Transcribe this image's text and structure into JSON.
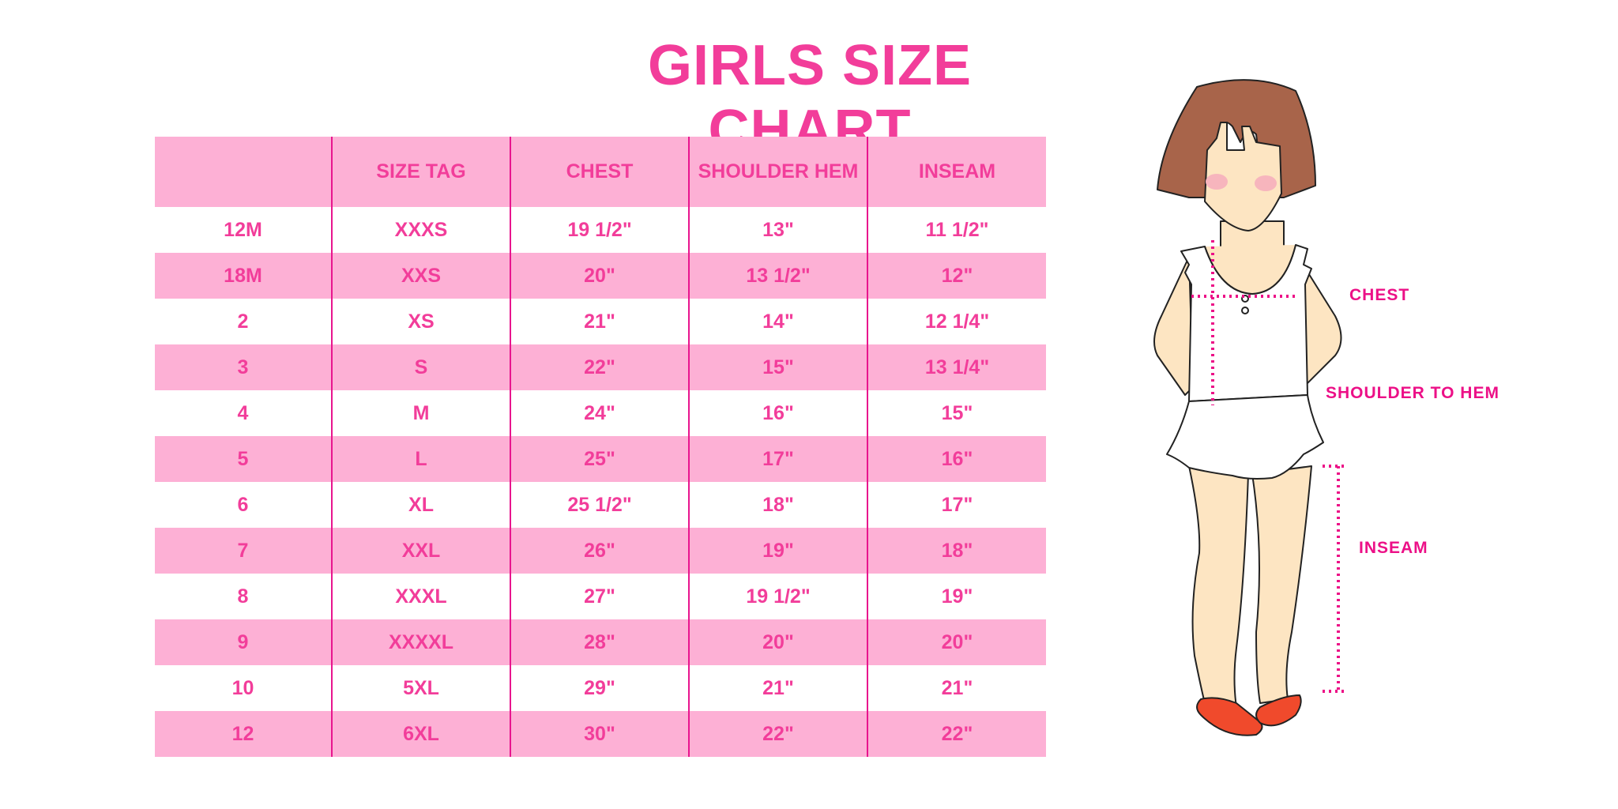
{
  "title": "GIRLS SIZE CHART",
  "table": {
    "headers": [
      "",
      "SIZE TAG",
      "CHEST",
      "SHOULDER HEM",
      "INSEAM"
    ],
    "rows": [
      [
        "12M",
        "XXXS",
        "19 1/2\"",
        "13\"",
        "11 1/2\""
      ],
      [
        "18M",
        "XXS",
        "20\"",
        "13 1/2\"",
        "12\""
      ],
      [
        "2",
        "XS",
        "21\"",
        "14\"",
        "12 1/4\""
      ],
      [
        "3",
        "S",
        "22\"",
        "15\"",
        "13 1/4\""
      ],
      [
        "4",
        "M",
        "24\"",
        "16\"",
        "15\""
      ],
      [
        "5",
        "L",
        "25\"",
        "17\"",
        "16\""
      ],
      [
        "6",
        "XL",
        "25 1/2\"",
        "18\"",
        "17\""
      ],
      [
        "7",
        "XXL",
        "26\"",
        "19\"",
        "18\""
      ],
      [
        "8",
        "XXXL",
        "27\"",
        "19 1/2\"",
        "19\""
      ],
      [
        "9",
        "XXXXL",
        "28\"",
        "20\"",
        "20\""
      ],
      [
        "10",
        "5XL",
        "29\"",
        "21\"",
        "21\""
      ],
      [
        "12",
        "6XL",
        "30\"",
        "22\"",
        "22\""
      ]
    ]
  },
  "figure": {
    "labels": {
      "chest": "CHEST",
      "shoulder_to_hem": "SHOULDER TO HEM",
      "inseam": "INSEAM"
    }
  },
  "colors": {
    "accent": "#f23d9a",
    "row_band": "#fdb0d5",
    "divider": "#e8158e"
  }
}
